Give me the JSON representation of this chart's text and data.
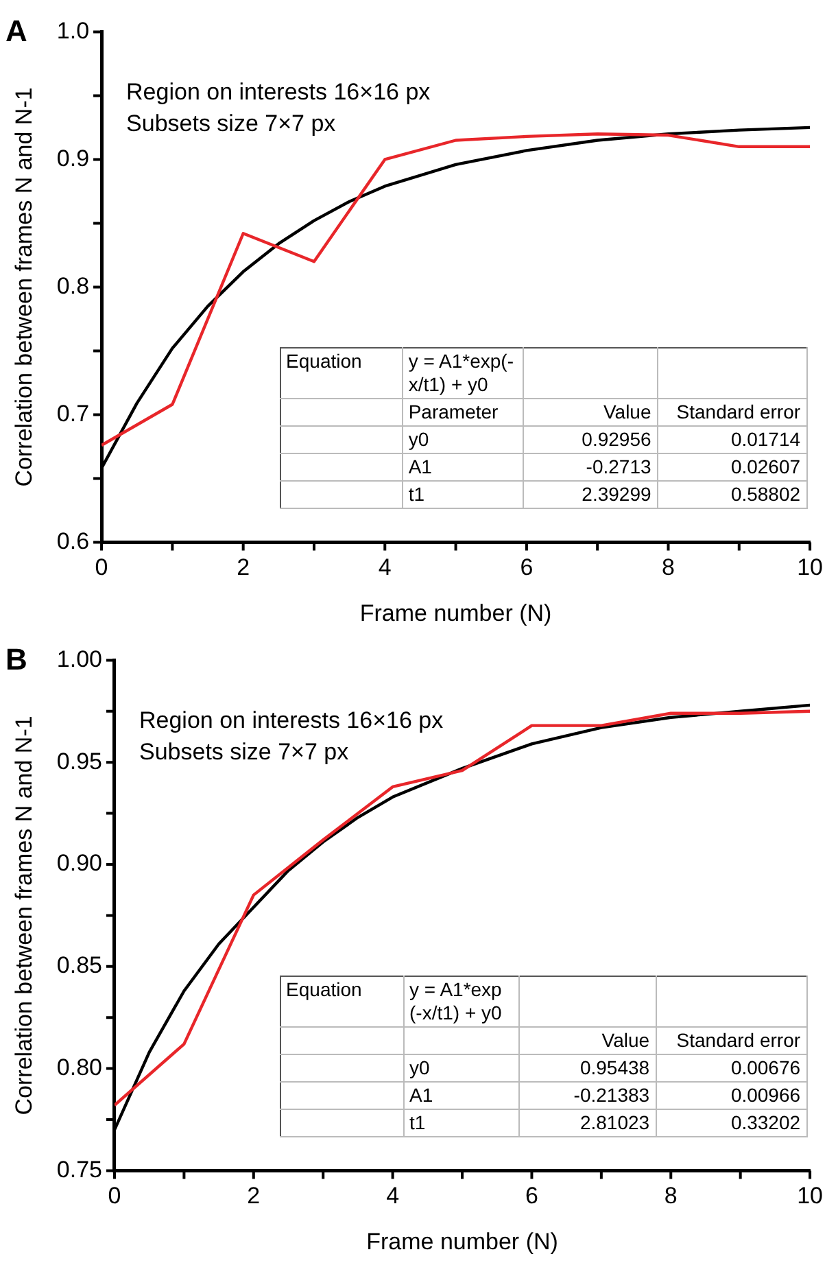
{
  "chart_data": [
    {
      "type": "line",
      "title": "A",
      "xlabel": "Frame number (N)",
      "ylabel": "Correlation between frames N and N-1",
      "x": [
        0,
        1,
        2,
        3,
        4,
        5,
        6,
        7,
        8,
        9,
        10
      ],
      "series": [
        {
          "color": "#e8262a",
          "values": [
            0.676,
            0.708,
            0.842,
            0.82,
            0.9,
            0.915,
            0.918,
            0.92,
            0.919,
            0.91,
            0.91
          ]
        },
        {
          "type": "line",
          "color": "#000000",
          "x": [
            0,
            0.5,
            1,
            1.5,
            2,
            2.5,
            3,
            3.5,
            4,
            5,
            6,
            7,
            8,
            9,
            10
          ],
          "values": [
            0.658,
            0.709,
            0.752,
            0.785,
            0.812,
            0.834,
            0.852,
            0.867,
            0.879,
            0.896,
            0.907,
            0.915,
            0.92,
            0.923,
            0.925
          ]
        }
      ],
      "xlim": [
        0,
        10
      ],
      "ylim": [
        0.6,
        1.0
      ],
      "xticks": [
        0,
        {
          "value": 1,
          "label": null
        },
        2,
        {
          "value": 3,
          "label": null
        },
        4,
        {
          "value": 5,
          "label": null
        },
        6,
        {
          "value": 7,
          "label": null
        },
        8,
        {
          "value": 9,
          "label": null
        },
        10
      ],
      "yticks": [
        {
          "value": 0.6,
          "label": "0.6"
        },
        {
          "value": 0.65,
          "label": null
        },
        {
          "value": 0.7,
          "label": "0.7"
        },
        {
          "value": 0.75,
          "label": null
        },
        {
          "value": 0.8,
          "label": "0.8"
        },
        {
          "value": 0.85,
          "label": null
        },
        {
          "value": 0.9,
          "label": "0.9"
        },
        {
          "value": 0.95,
          "label": null
        },
        {
          "value": 1.0,
          "label": "1.0"
        }
      ],
      "grid": false,
      "legend": false,
      "marker": "none",
      "line_style": "solid",
      "annotations": [
        "Region on interests 16×16 px",
        "Subsets size 7×7 px",
        "Equation\ty = A1*exp(-x/t1) + y0\t\t",
        "\tParameter\tValue\tStandard error",
        "\ty0\t0.92956\t0.01714",
        "\tA1\t-0.2713\t0.02607",
        "\tt1\t2.39299\t0.58802"
      ]
    },
    {
      "type": "line",
      "title": "B",
      "xlabel": "Frame number (N)",
      "ylabel": "Correlation between frames N and N-1",
      "x": [
        0,
        1,
        2,
        3,
        4,
        5,
        6,
        7,
        8,
        9,
        10
      ],
      "series": [
        {
          "color": "#e8262a",
          "values": [
            0.782,
            0.812,
            0.885,
            0.912,
            0.938,
            0.946,
            0.968,
            0.968,
            0.974,
            0.974,
            0.975
          ]
        },
        {
          "type": "line",
          "color": "#000000",
          "x": [
            0,
            0.5,
            1,
            1.5,
            2,
            2.5,
            3,
            3.5,
            4,
            5,
            6,
            7,
            8,
            9,
            10
          ],
          "values": [
            0.77,
            0.808,
            0.838,
            0.861,
            0.879,
            0.897,
            0.911,
            0.923,
            0.933,
            0.947,
            0.959,
            0.967,
            0.972,
            0.975,
            0.978
          ]
        }
      ],
      "xlim": [
        0,
        10
      ],
      "ylim": [
        0.75,
        1.0
      ],
      "xticks": [
        0,
        {
          "value": 1,
          "label": null
        },
        2,
        {
          "value": 3,
          "label": null
        },
        4,
        {
          "value": 5,
          "label": null
        },
        6,
        {
          "value": 7,
          "label": null
        },
        8,
        {
          "value": 9,
          "label": null
        },
        10
      ],
      "yticks": [
        {
          "value": 0.75,
          "label": "0.75"
        },
        {
          "value": 0.775,
          "label": null
        },
        {
          "value": 0.8,
          "label": "0.80"
        },
        {
          "value": 0.825,
          "label": null
        },
        {
          "value": 0.85,
          "label": "0.85"
        },
        {
          "value": 0.875,
          "label": null
        },
        {
          "value": 0.9,
          "label": "0.90"
        },
        {
          "value": 0.925,
          "label": null
        },
        {
          "value": 0.95,
          "label": "0.95"
        },
        {
          "value": 0.975,
          "label": null
        },
        {
          "value": 1.0,
          "label": "1.00"
        }
      ],
      "grid": false,
      "legend": false,
      "marker": "none",
      "line_style": "solid",
      "annotations": [
        "Region on interests 16×16 px",
        "Subsets size 7×7 px",
        "Equation\ty = A1*exp (-x/t1) + y0\t\t",
        "\t\tValue\tStandard error",
        "\ty0\t0.95438\t0.00676",
        "\tA1\t-0.21383\t0.00966",
        "\tt1\t2.81023\t0.33202"
      ]
    }
  ]
}
